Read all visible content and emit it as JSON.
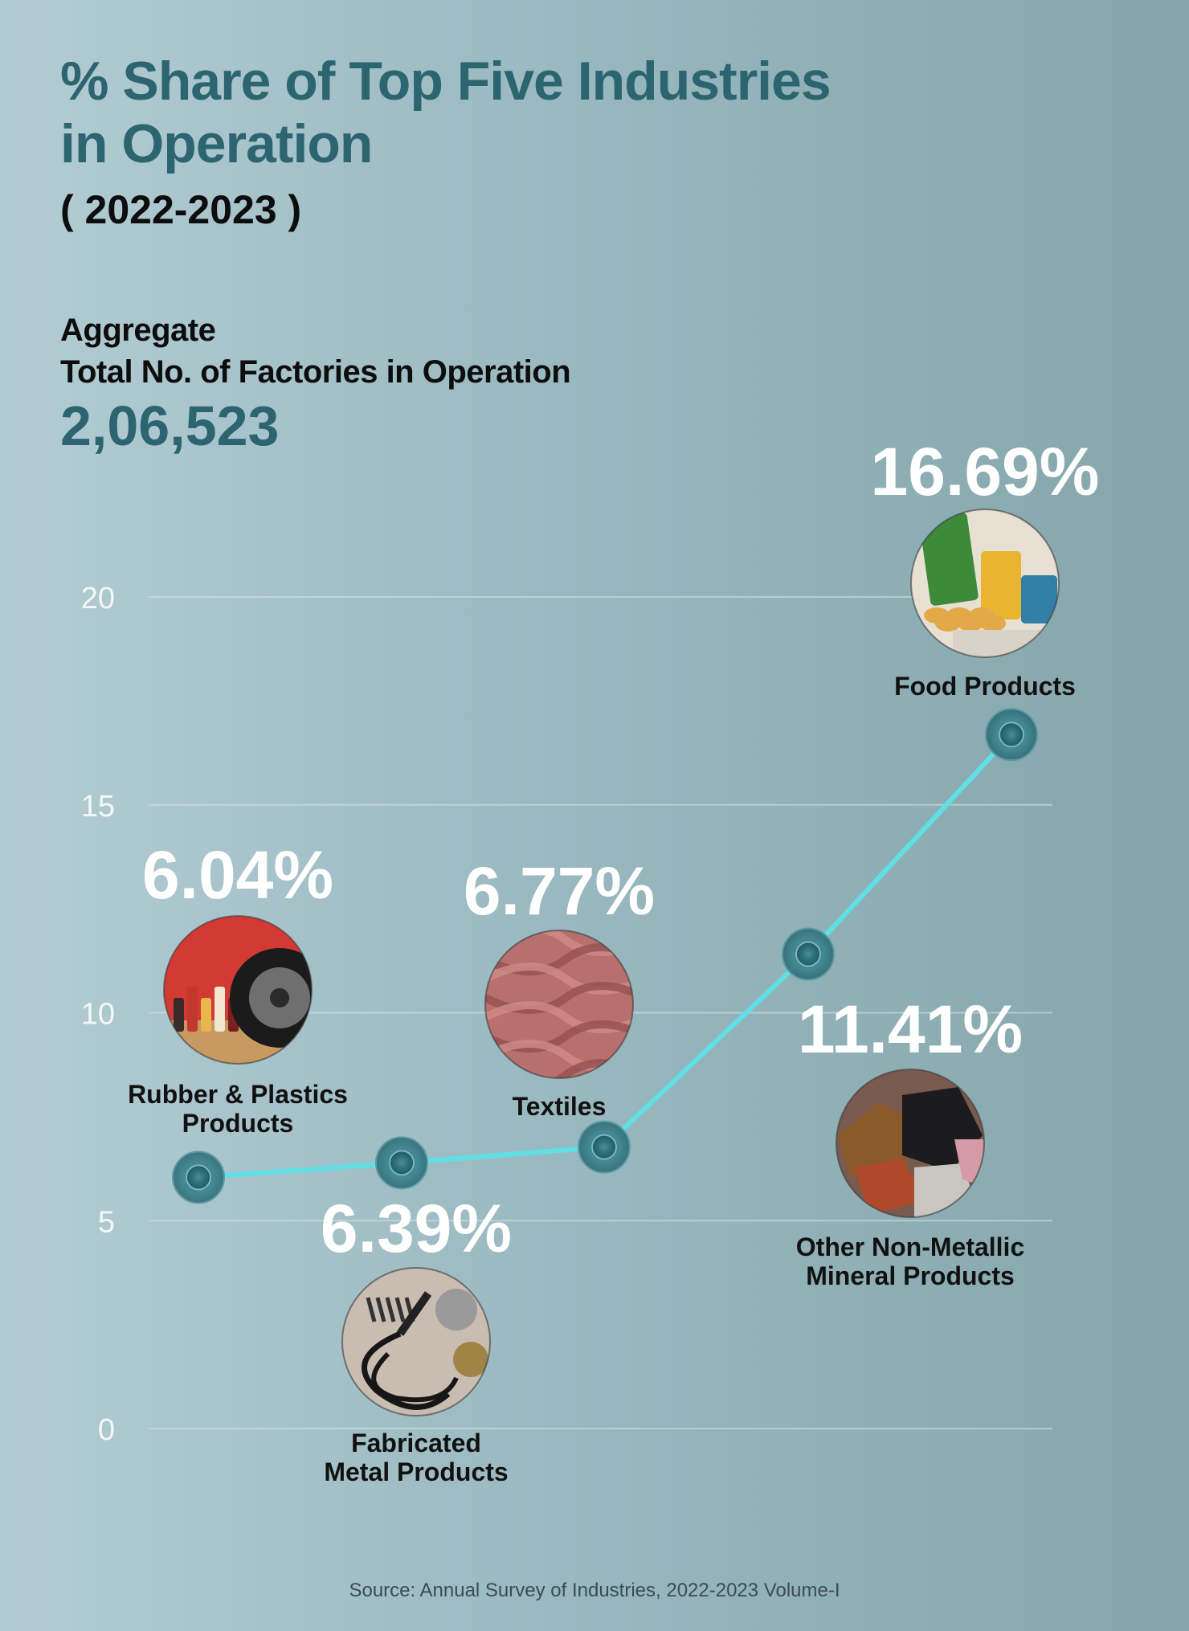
{
  "header": {
    "title_line1": "% Share of Top Five Industries",
    "title_line2": "in Operation",
    "years": "( 2022-2023 )"
  },
  "aggregate": {
    "label_line1": "Aggregate",
    "label_line2": "Total No. of Factories in Operation",
    "value": "2,06,523"
  },
  "source": "Source: Annual Survey of Industries, 2022-2023 Volume-I",
  "chart_data": {
    "type": "line",
    "title": "% Share of Top Five Industries in Operation",
    "ylim": [
      0,
      20
    ],
    "yticks": [
      0,
      5,
      10,
      15,
      20
    ],
    "grid": true,
    "series": [
      {
        "points": [
          {
            "label": [
              "Rubber & Plastics",
              "Products"
            ],
            "value": 6.04,
            "value_label": "6.04%",
            "image": "cosmetic-bottles-and-tyre",
            "label_side": "above"
          },
          {
            "label": [
              "Fabricated",
              "Metal Products"
            ],
            "value": 6.39,
            "value_label": "6.39%",
            "image": "soldering-iron-and-metal-tools",
            "label_side": "below"
          },
          {
            "label": [
              "Textiles"
            ],
            "value": 6.77,
            "value_label": "6.77%",
            "image": "pink-fabric",
            "label_side": "above"
          },
          {
            "label": [
              "Other Non-Metallic",
              "Mineral Products"
            ],
            "value": 11.41,
            "value_label": "11.41%",
            "image": "mineral-rocks",
            "label_side": "below"
          },
          {
            "label": [
              "Food Products"
            ],
            "value": 16.69,
            "value_label": "16.69%",
            "image": "chips-and-snack-packets",
            "label_side": "above"
          }
        ]
      }
    ]
  }
}
